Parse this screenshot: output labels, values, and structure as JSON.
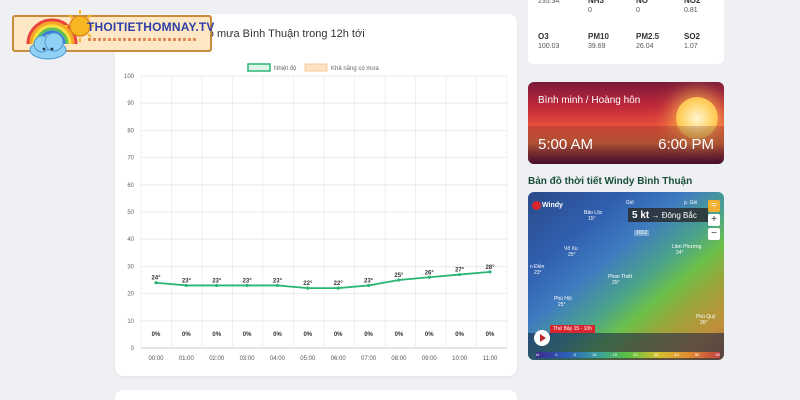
{
  "logo": {
    "text": "THOITIETHOMNAY.TV"
  },
  "chart_card": {
    "title": "ng có mưa Bình Thuận trong 12h tới"
  },
  "chart_data": {
    "type": "line",
    "title": "ng có mưa Bình Thuận trong 12h tới",
    "legend_position": "top",
    "categories": [
      "00:00",
      "01:00",
      "02:00",
      "03:00",
      "04:00",
      "05:00",
      "06:00",
      "07:00",
      "08:00",
      "09:00",
      "10:00",
      "11:00"
    ],
    "series": [
      {
        "name": "Nhiệt độ",
        "color": "#2bb673",
        "values": [
          24,
          23,
          23,
          23,
          23,
          22,
          22,
          23,
          25,
          26,
          27,
          28
        ],
        "labels": [
          "24°",
          "23°",
          "23°",
          "23°",
          "23°",
          "22°",
          "22°",
          "23°",
          "25°",
          "26°",
          "27°",
          "28°"
        ]
      },
      {
        "name": "Khả năng có mưa",
        "color": "#fde2c4",
        "values": [
          0,
          0,
          0,
          0,
          0,
          0,
          0,
          0,
          0,
          0,
          0,
          0
        ],
        "labels": [
          "0%",
          "0%",
          "0%",
          "0%",
          "0%",
          "0%",
          "0%",
          "0%",
          "0%",
          "0%",
          "0%",
          "0%"
        ]
      }
    ],
    "ylim": [
      0,
      100
    ],
    "yticks": [
      "0",
      "10",
      "20",
      "30",
      "40",
      "50",
      "60",
      "70",
      "80",
      "90",
      "100"
    ],
    "grid": true
  },
  "air_quality": [
    {
      "label": "",
      "value": "235.34"
    },
    {
      "label": "NH3",
      "value": "0"
    },
    {
      "label": "NO",
      "value": "0"
    },
    {
      "label": "NO2",
      "value": "0.81"
    },
    {
      "label": "O3",
      "value": "100.03"
    },
    {
      "label": "PM10",
      "value": "39.69"
    },
    {
      "label": "PM2.5",
      "value": "26.04"
    },
    {
      "label": "SO2",
      "value": "1.07"
    }
  ],
  "sun": {
    "title": "Bình minh / Hoàng hôn",
    "sunrise": "5:00 AM",
    "sunset": "6:00 PM"
  },
  "map": {
    "title": "Bản đồ thời tiết Windy Bình Thuận",
    "brand": "Windy",
    "wind_speed": "5 kt",
    "wind_dir": "→ Đông Bắc",
    "gio_label": "Gió",
    "pgio_label": "p. Gió",
    "pressure": "1012",
    "zoom_in": "+",
    "zoom_out": "−",
    "date": "Thứ Bảy 15 - 10h",
    "places": [
      {
        "name": "Bảo Lộc",
        "temp": "15°"
      },
      {
        "name": "Võ Xu",
        "temp": "25°"
      },
      {
        "name": "Phan Thiết",
        "temp": "25°"
      },
      {
        "name": "Lâm Phương",
        "temp": "24°"
      },
      {
        "name": "n Điền",
        "temp": "23°"
      },
      {
        "name": "Phú Hội",
        "temp": "25°"
      },
      {
        "name": "Phú Quý",
        "temp": "26°"
      }
    ],
    "scale": [
      "kt",
      "0",
      "5",
      "10",
      "15",
      "20",
      "30",
      "40",
      "50",
      "60"
    ]
  }
}
